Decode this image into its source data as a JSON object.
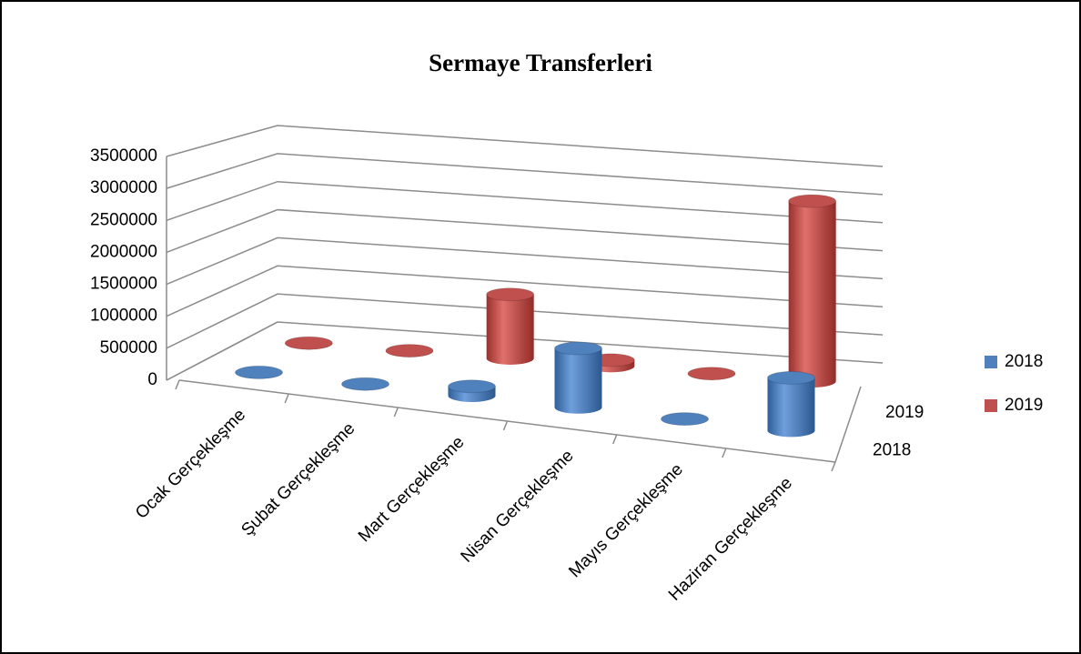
{
  "chart_data": {
    "type": "bar3d",
    "title": "Sermaye Transferleri",
    "categories": [
      "Ocak Gerçekleşme",
      "Şubat Gerçekleşme",
      "Mart Gerçekleşme",
      "Nisan Gerçekleşme",
      "Mayıs Gerçekleşme",
      "Haziran Gerçekleşme"
    ],
    "series": [
      {
        "name": "2018",
        "color": "#4f81bd",
        "values": [
          0,
          0,
          150000,
          950000,
          0,
          850000
        ]
      },
      {
        "name": "2019",
        "color": "#c0504d",
        "values": [
          0,
          0,
          1100000,
          100000,
          0,
          3100000
        ]
      }
    ],
    "ylim": [
      0,
      3500000
    ],
    "yticks": [
      0,
      500000,
      1000000,
      1500000,
      2000000,
      2500000,
      3000000,
      3500000
    ],
    "grid": true,
    "legend": "right"
  }
}
